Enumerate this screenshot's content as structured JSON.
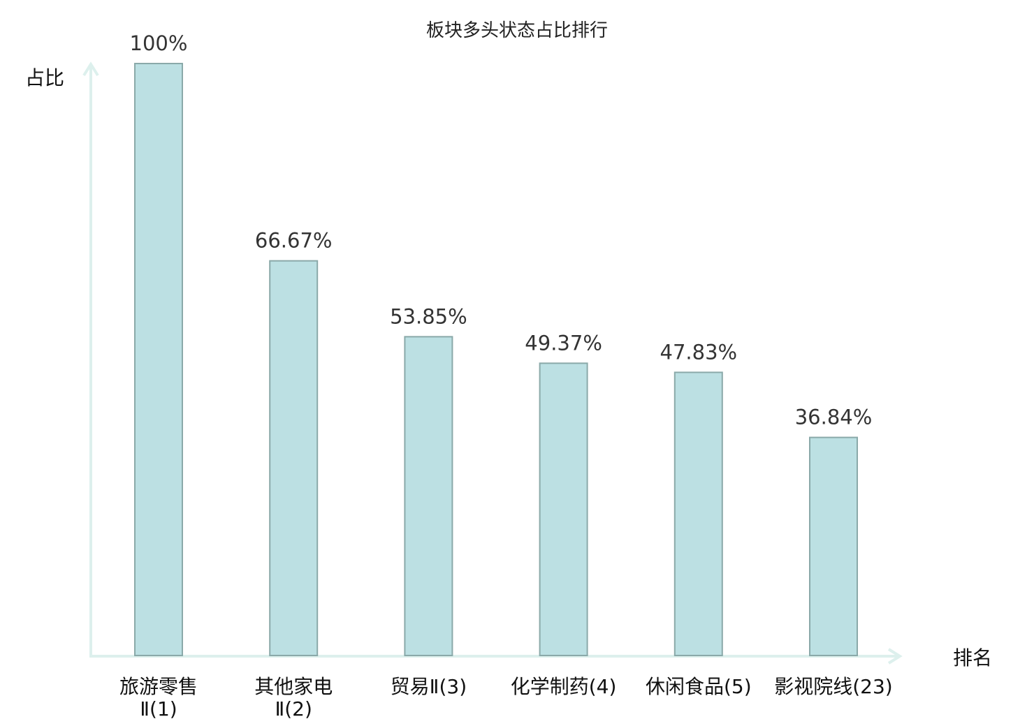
{
  "chart_data": {
    "type": "bar",
    "title": "板块多头状态占比排行",
    "xlabel": "排名",
    "ylabel": "占比",
    "ylim": [
      0,
      100
    ],
    "grid": false,
    "categories": [
      [
        "旅游零售",
        "Ⅱ(1)"
      ],
      [
        "其他家电",
        "Ⅱ(2)"
      ],
      [
        "贸易Ⅱ(3)"
      ],
      [
        "化学制药(4)"
      ],
      [
        "休闲食品(5)"
      ],
      [
        "影视院线(23)"
      ]
    ],
    "values": [
      100,
      66.67,
      53.85,
      49.37,
      47.83,
      36.84
    ],
    "value_labels": [
      "100%",
      "66.67%",
      "53.85%",
      "49.37%",
      "47.83%",
      "36.84%"
    ],
    "highlight_index": 5,
    "colors": {
      "bar_fill": "#bce0e3",
      "bar_stroke": "#8aa9a9",
      "axis": "#ddf0ed",
      "highlight": "#e8141c",
      "text": "#111111"
    }
  }
}
